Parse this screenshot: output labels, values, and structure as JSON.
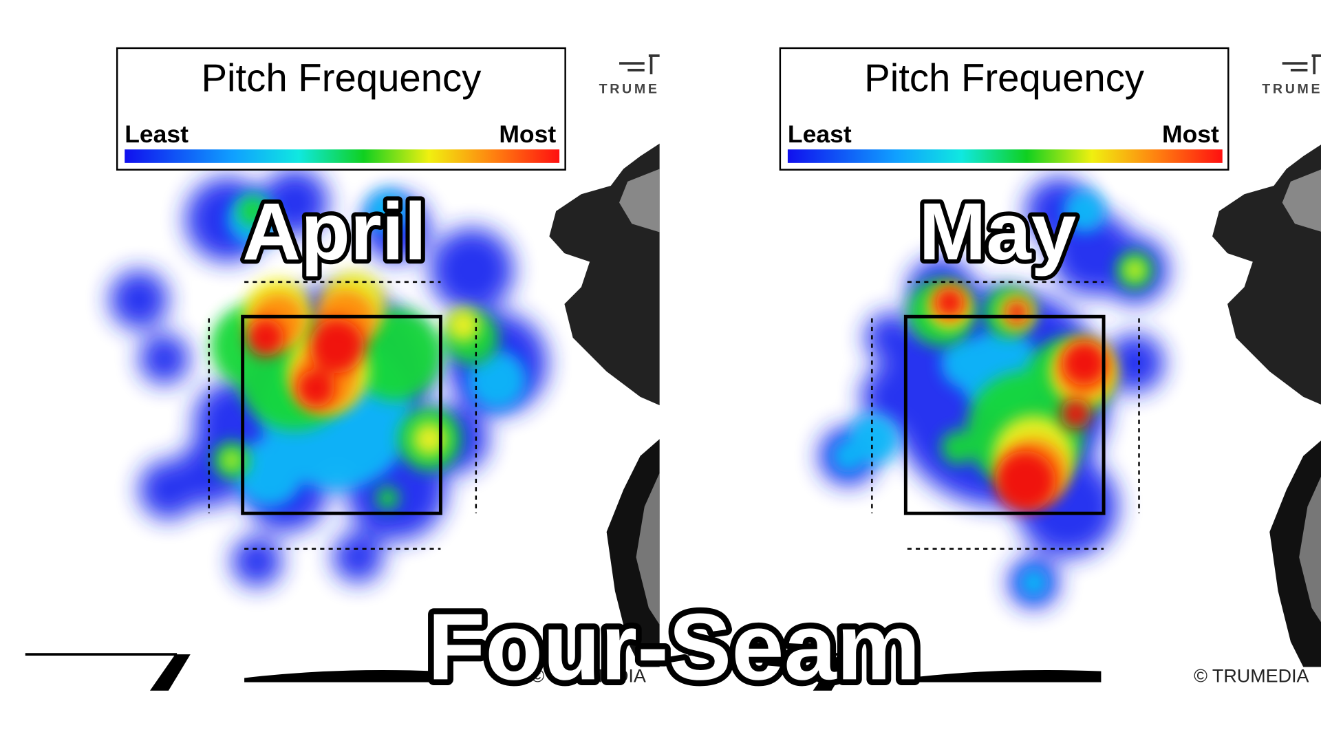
{
  "title": "Four-Seam",
  "panels": [
    {
      "legend": {
        "title": "Pitch Frequency",
        "low": "Least",
        "high": "Most"
      },
      "label": "April",
      "logo": "TRUMEDIA",
      "footer": "© TRUMEDIA"
    },
    {
      "legend": {
        "title": "Pitch Frequency",
        "low": "Least",
        "high": "Most"
      },
      "label": "May",
      "logo": "TRUMEDIA",
      "footer": "© TRUMEDIA"
    }
  ]
}
